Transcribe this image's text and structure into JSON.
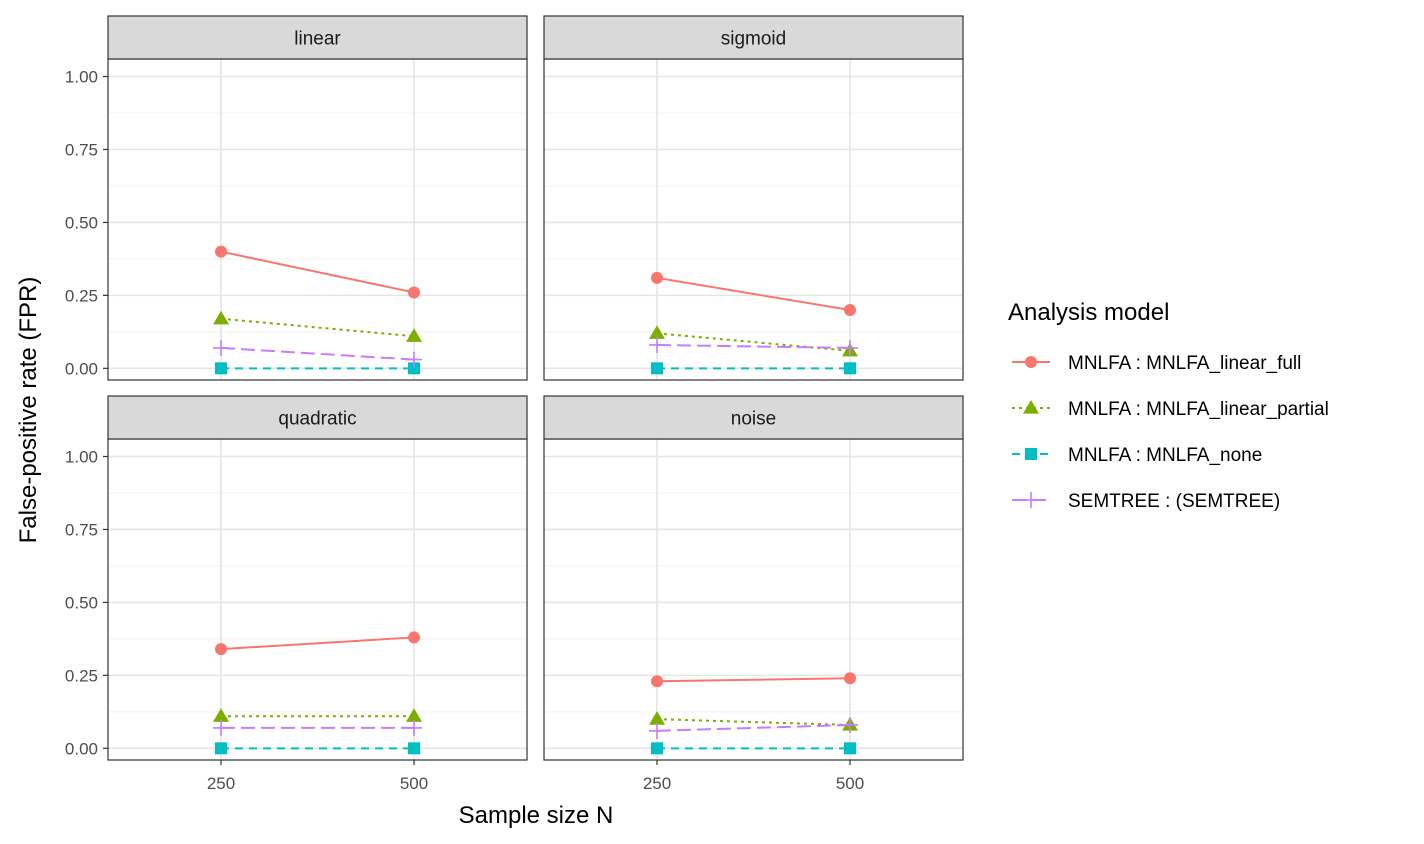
{
  "chart_data": {
    "type": "line",
    "x_categories": [
      "250",
      "500"
    ],
    "xlabel": "Sample size N",
    "ylabel": "False-positive rate (FPR)",
    "ylim": [
      -0.04,
      1.06
    ],
    "y_ticks": [
      0.0,
      0.25,
      0.5,
      0.75,
      1.0
    ],
    "y_tick_labels": [
      "0.00",
      "0.25",
      "0.50",
      "0.75",
      "1.00"
    ],
    "grid": true,
    "legend": {
      "title": "Analysis model",
      "placement": "right"
    },
    "series_styles": [
      {
        "key": "full",
        "name": "MNLFA : MNLFA_linear_full",
        "color": "#F8766D",
        "marker": "circle",
        "dash": "solid"
      },
      {
        "key": "partial",
        "name": "MNLFA : MNLFA_linear_partial",
        "color": "#7CAE00",
        "marker": "triangle",
        "dash": "dotted"
      },
      {
        "key": "none",
        "name": "MNLFA : MNLFA_none",
        "color": "#00BFC4",
        "marker": "square",
        "dash": "dashed"
      },
      {
        "key": "semtree",
        "name": "SEMTREE : (SEMTREE)",
        "color": "#C77CFF",
        "marker": "plus",
        "dash": "longdash"
      }
    ],
    "panels": [
      {
        "title": "linear",
        "series": [
          {
            "key": "full",
            "values": [
              0.4,
              0.26
            ]
          },
          {
            "key": "partial",
            "values": [
              0.17,
              0.11
            ]
          },
          {
            "key": "none",
            "values": [
              0.0,
              0.0
            ]
          },
          {
            "key": "semtree",
            "values": [
              0.07,
              0.03
            ]
          }
        ]
      },
      {
        "title": "sigmoid",
        "series": [
          {
            "key": "full",
            "values": [
              0.31,
              0.2
            ]
          },
          {
            "key": "partial",
            "values": [
              0.12,
              0.06
            ]
          },
          {
            "key": "none",
            "values": [
              0.0,
              0.0
            ]
          },
          {
            "key": "semtree",
            "values": [
              0.08,
              0.07
            ]
          }
        ]
      },
      {
        "title": "quadratic",
        "series": [
          {
            "key": "full",
            "values": [
              0.34,
              0.38
            ]
          },
          {
            "key": "partial",
            "values": [
              0.11,
              0.11
            ]
          },
          {
            "key": "none",
            "values": [
              0.0,
              0.0
            ]
          },
          {
            "key": "semtree",
            "values": [
              0.07,
              0.07
            ]
          }
        ]
      },
      {
        "title": "noise",
        "series": [
          {
            "key": "full",
            "values": [
              0.23,
              0.24
            ]
          },
          {
            "key": "partial",
            "values": [
              0.1,
              0.08
            ]
          },
          {
            "key": "none",
            "values": [
              0.0,
              0.0
            ]
          },
          {
            "key": "semtree",
            "values": [
              0.06,
              0.08
            ]
          }
        ]
      }
    ]
  }
}
